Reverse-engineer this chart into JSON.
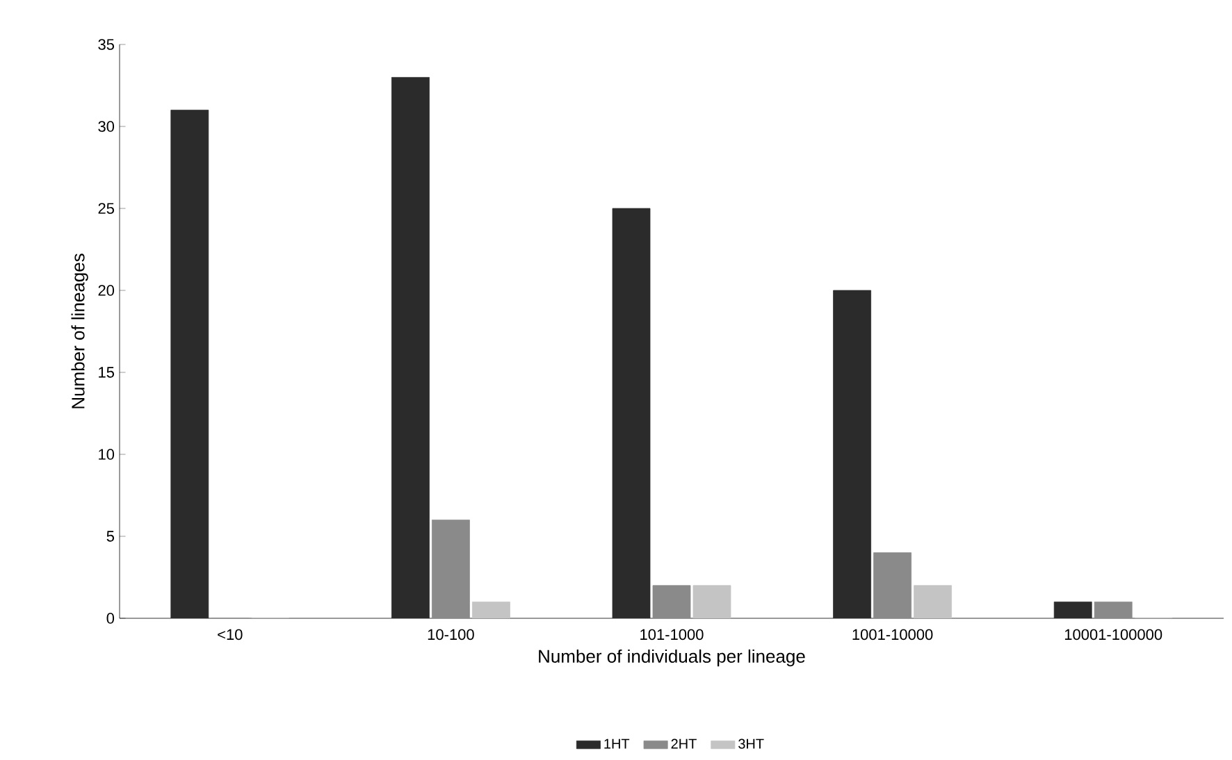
{
  "chart_data": {
    "type": "bar",
    "xlabel": "Number of individuals  per lineage",
    "ylabel": "Number of lineages",
    "categories": [
      "<10",
      "10-100",
      "101-1000",
      "1001-10000",
      "10001-100000"
    ],
    "series": [
      {
        "name": "1HT",
        "color": "#2b2b2b",
        "values": [
          31,
          33,
          25,
          20,
          1
        ]
      },
      {
        "name": "2HT",
        "color": "#8a8a8a",
        "values": [
          0,
          6,
          2,
          4,
          1
        ]
      },
      {
        "name": "3HT",
        "color": "#c4c4c4",
        "values": [
          0,
          1,
          2,
          2,
          0
        ]
      }
    ],
    "ylim": [
      0,
      35
    ],
    "yticks": [
      0,
      5,
      10,
      15,
      20,
      25,
      30,
      35
    ],
    "grid": false,
    "legend": "bottom"
  }
}
